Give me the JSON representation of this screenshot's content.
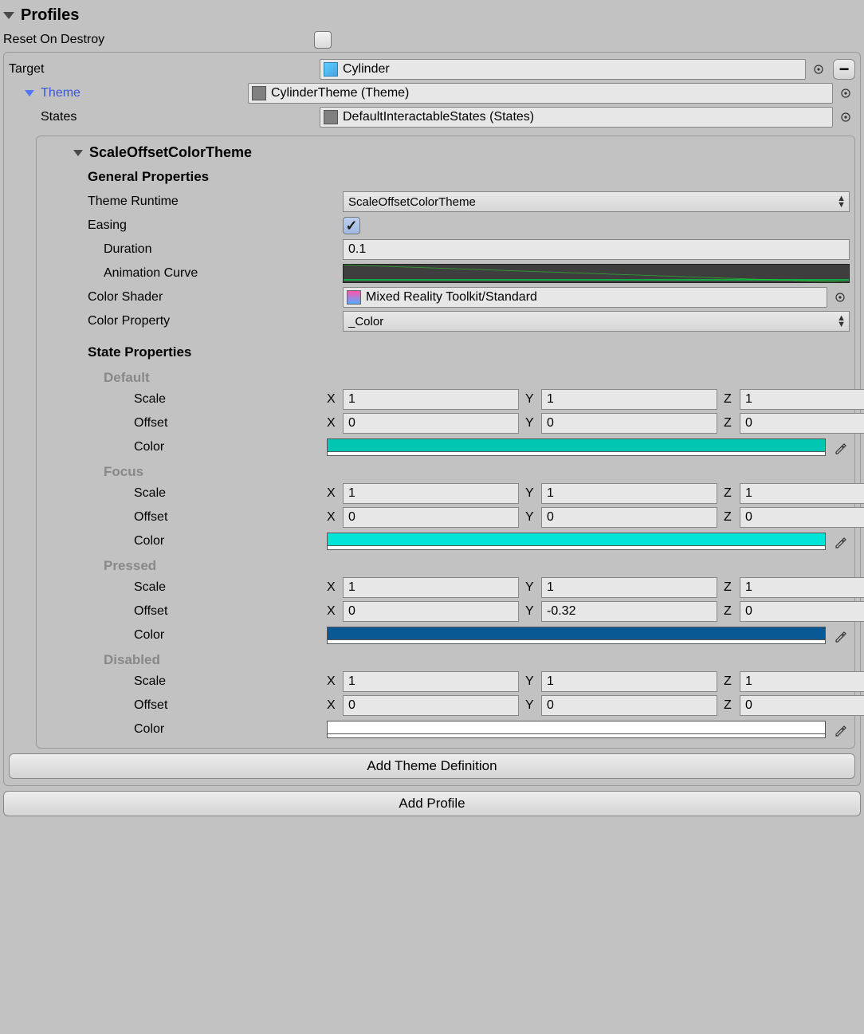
{
  "header": {
    "title": "Profiles",
    "resetOnDestroy": "Reset On Destroy",
    "resetChecked": false
  },
  "target": {
    "label": "Target",
    "value": "Cylinder"
  },
  "theme": {
    "label": "Theme",
    "value": "CylinderTheme (Theme)"
  },
  "states": {
    "label": "States",
    "value": "DefaultInteractableStates (States)"
  },
  "themeSection": {
    "title": "ScaleOffsetColorTheme",
    "generalHeading": "General Properties",
    "themeRuntime": {
      "label": "Theme Runtime",
      "value": "ScaleOffsetColorTheme"
    },
    "easing": {
      "label": "Easing",
      "checked": true
    },
    "duration": {
      "label": "Duration",
      "value": "0.1"
    },
    "animCurve": {
      "label": "Animation Curve"
    },
    "colorShader": {
      "label": "Color Shader",
      "value": "Mixed Reality Toolkit/Standard"
    },
    "colorProperty": {
      "label": "Color Property",
      "value": "_Color"
    },
    "statePropsHeading": "State Properties",
    "rowLabels": {
      "scale": "Scale",
      "offset": "Offset",
      "color": "Color",
      "x": "X",
      "y": "Y",
      "z": "Z"
    },
    "states": [
      {
        "name": "Default",
        "scale": {
          "x": "1",
          "y": "1",
          "z": "1"
        },
        "offset": {
          "x": "0",
          "y": "0",
          "z": "0"
        },
        "color": "#00c7b1"
      },
      {
        "name": "Focus",
        "scale": {
          "x": "1",
          "y": "1",
          "z": "1"
        },
        "offset": {
          "x": "0",
          "y": "0",
          "z": "0"
        },
        "color": "#00e5d8"
      },
      {
        "name": "Pressed",
        "scale": {
          "x": "1",
          "y": "1",
          "z": "1"
        },
        "offset": {
          "x": "0",
          "y": "-0.32",
          "z": "0"
        },
        "color": "#095a94"
      },
      {
        "name": "Disabled",
        "scale": {
          "x": "1",
          "y": "1",
          "z": "1"
        },
        "offset": {
          "x": "0",
          "y": "0",
          "z": "0"
        },
        "color": "#ffffff"
      }
    ]
  },
  "buttons": {
    "addThemeDef": "Add Theme Definition",
    "addProfile": "Add Profile"
  }
}
